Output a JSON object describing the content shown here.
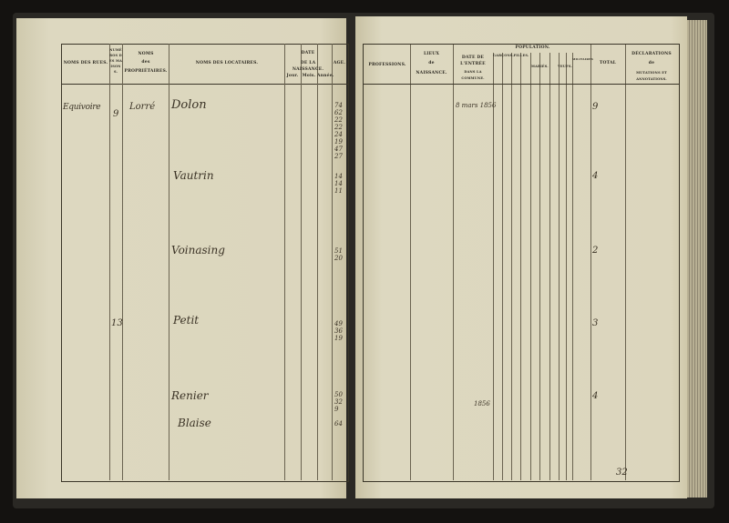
{
  "left_page": {
    "headers": {
      "rues": "NOMS DES RUES.",
      "numeros": "NUMÉROS DES MAISONS.",
      "proprietaires_1": "NOMS",
      "proprietaires_2": "des",
      "proprietaires_3": "PROPRIÉTAIRES.",
      "locataires": "NOMS DES LOCATAIRES.",
      "date_1": "DATE",
      "date_2": "DE LA NAISSANCE.",
      "jour": "Jour.",
      "mois": "Mois.",
      "annee": "Année.",
      "age": "AGE."
    },
    "entries": [
      {
        "rue": "Equivoire",
        "numero": "9",
        "proprietaire": "Lorré",
        "locataire": "Dolon",
        "ages": [
          "74",
          "62",
          "22",
          "22",
          "24",
          "19",
          "47",
          "27"
        ]
      },
      {
        "locataire": "Vautrin",
        "ages": [
          "14",
          "14",
          "11"
        ]
      },
      {
        "locataire": "Voinasing",
        "ages": [
          "51",
          "20"
        ]
      },
      {
        "numero": "13",
        "locataire": "Petit",
        "ages": [
          "49",
          "36",
          "19"
        ]
      },
      {
        "locataire": "Renier",
        "ages": [
          "50",
          "32",
          "9"
        ]
      },
      {
        "locataire": "Blaise",
        "ages": [
          "64"
        ]
      }
    ]
  },
  "right_page": {
    "headers": {
      "professions": "PROFESSIONS.",
      "lieu_1": "LIEUX",
      "lieu_2": "de",
      "lieu_3": "NAISSANCE.",
      "entree_1": "DATE DE L'ENTRÉE",
      "entree_2": "DANS LA COMMUNE.",
      "population": "POPULATION.",
      "garcons": "GARÇONS.",
      "filles": "FILLES.",
      "maries": "MARIÉS.",
      "veufs": "VEUFS.",
      "militaires": "MILITAIRES",
      "total": "TOTAL",
      "declarations_1": "DÉCLARATIONS",
      "declarations_2": "de",
      "declarations_3": "MUTATIONS ET ANNOTATIONS."
    },
    "entries": [
      {
        "entree": "8 mars 1856",
        "totaux": "9"
      },
      {
        "totaux": "4"
      },
      {
        "totaux": "2"
      },
      {
        "totaux": "3"
      },
      {
        "entree": "1856",
        "totaux": "4"
      }
    ],
    "footer_total": "32"
  }
}
